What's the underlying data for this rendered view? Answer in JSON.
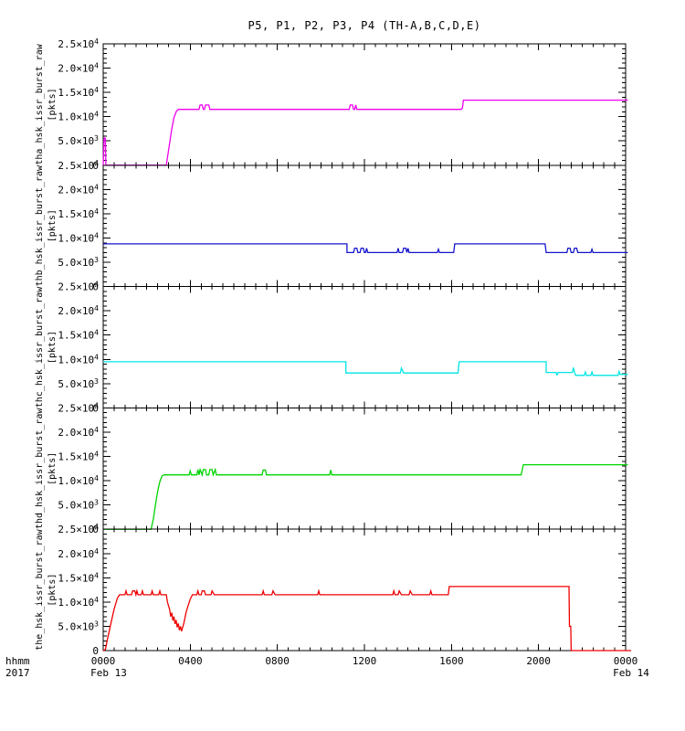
{
  "title": "P5, P1, P2, P3, P4 (TH-A,B,C,D,E)",
  "axis_footer": {
    "line1": "hhmm",
    "line2": "2017"
  },
  "chart_data": {
    "type": "line",
    "title": "P5, P1, P2, P3, P4 (TH-A,B,C,D,E)",
    "grid": false,
    "legend_position": "none",
    "x": {
      "unit": "hhmm",
      "year": "2017",
      "range_hours": [
        0,
        24
      ],
      "minor_step_hours": 0.5,
      "major_ticks": [
        {
          "h": 0,
          "label": "0000",
          "sub": "Feb 13"
        },
        {
          "h": 4,
          "label": "0400"
        },
        {
          "h": 8,
          "label": "0800"
        },
        {
          "h": 12,
          "label": "1200"
        },
        {
          "h": 16,
          "label": "1600"
        },
        {
          "h": 20,
          "label": "2000"
        },
        {
          "h": 24,
          "label": "0000",
          "sub": "Feb 14"
        }
      ]
    },
    "y": {
      "range": [
        0,
        25000
      ],
      "major_step": 5000,
      "minor_step": 1000,
      "unit": "[pkts]",
      "tick_labels": [
        {
          "v": 25000,
          "label": "2.5×10^4"
        },
        {
          "v": 20000,
          "label": "2.0×10^4"
        },
        {
          "v": 15000,
          "label": "1.5×10^4"
        },
        {
          "v": 10000,
          "label": "1.0×10^4"
        },
        {
          "v": 5000,
          "label": "5.0×10^3"
        },
        {
          "v": 0,
          "label": "0"
        }
      ]
    },
    "panels": [
      {
        "probe": "P5",
        "label": "tha_hsk_issr_burst_raw",
        "unit": "[pkts]",
        "color": "#ee00ee",
        "points": [
          [
            0,
            0
          ],
          [
            0.04,
            5600
          ],
          [
            0.1,
            5600
          ],
          [
            0.12,
            0
          ],
          [
            2.9,
            0
          ],
          [
            2.95,
            1500
          ],
          [
            3.05,
            4500
          ],
          [
            3.15,
            7500
          ],
          [
            3.25,
            9800
          ],
          [
            3.35,
            11000
          ],
          [
            3.45,
            11500
          ],
          [
            4.4,
            11500
          ],
          [
            4.45,
            12400
          ],
          [
            4.55,
            12400
          ],
          [
            4.6,
            11500
          ],
          [
            4.65,
            11500
          ],
          [
            4.7,
            12400
          ],
          [
            4.85,
            12400
          ],
          [
            4.9,
            11500
          ],
          [
            11.3,
            11500
          ],
          [
            11.35,
            12400
          ],
          [
            11.45,
            12400
          ],
          [
            11.5,
            11500
          ],
          [
            11.55,
            11500
          ],
          [
            11.6,
            12400
          ],
          [
            11.65,
            11500
          ],
          [
            16.45,
            11500
          ],
          [
            16.5,
            11800
          ],
          [
            16.55,
            13400
          ],
          [
            24.1,
            13400
          ]
        ]
      },
      {
        "probe": "P1",
        "label": "thb_hsk_issr_burst_raw",
        "unit": "[pkts]",
        "color": "#1515cc",
        "points": [
          [
            0,
            8800
          ],
          [
            11.2,
            8800
          ],
          [
            11.2,
            7000
          ],
          [
            11.5,
            7000
          ],
          [
            11.55,
            7900
          ],
          [
            11.65,
            7900
          ],
          [
            11.7,
            7000
          ],
          [
            11.8,
            7000
          ],
          [
            11.85,
            7900
          ],
          [
            11.95,
            7900
          ],
          [
            12.0,
            7000
          ],
          [
            12.05,
            7000
          ],
          [
            12.1,
            7900
          ],
          [
            12.15,
            7000
          ],
          [
            13.5,
            7000
          ],
          [
            13.55,
            7900
          ],
          [
            13.6,
            7000
          ],
          [
            13.75,
            7000
          ],
          [
            13.8,
            7900
          ],
          [
            13.9,
            7900
          ],
          [
            13.95,
            7000
          ],
          [
            14.0,
            7900
          ],
          [
            14.05,
            7000
          ],
          [
            15.35,
            7000
          ],
          [
            15.4,
            7700
          ],
          [
            15.45,
            7000
          ],
          [
            16.1,
            7000
          ],
          [
            16.15,
            8800
          ],
          [
            20.3,
            8800
          ],
          [
            20.35,
            7000
          ],
          [
            21.3,
            7000
          ],
          [
            21.35,
            7900
          ],
          [
            21.45,
            7900
          ],
          [
            21.5,
            7000
          ],
          [
            21.6,
            7000
          ],
          [
            21.65,
            7900
          ],
          [
            21.75,
            7900
          ],
          [
            21.8,
            7000
          ],
          [
            22.4,
            7000
          ],
          [
            22.45,
            7700
          ],
          [
            22.5,
            7000
          ],
          [
            24.1,
            7000
          ]
        ]
      },
      {
        "probe": "P2",
        "label": "thc_hsk_issr_burst_raw",
        "unit": "[pkts]",
        "color": "#00e5e5",
        "points": [
          [
            0,
            9500
          ],
          [
            11.15,
            9500
          ],
          [
            11.15,
            7200
          ],
          [
            13.65,
            7200
          ],
          [
            13.7,
            8200
          ],
          [
            13.8,
            7200
          ],
          [
            16.3,
            7200
          ],
          [
            16.35,
            9500
          ],
          [
            20.35,
            9500
          ],
          [
            20.35,
            7300
          ],
          [
            20.8,
            7300
          ],
          [
            20.85,
            6800
          ],
          [
            20.9,
            7300
          ],
          [
            21.55,
            7300
          ],
          [
            21.6,
            8300
          ],
          [
            21.65,
            7300
          ],
          [
            21.7,
            6700
          ],
          [
            22.1,
            6700
          ],
          [
            22.15,
            7400
          ],
          [
            22.2,
            6700
          ],
          [
            22.4,
            6700
          ],
          [
            22.45,
            7400
          ],
          [
            22.5,
            6700
          ],
          [
            23.65,
            6700
          ],
          [
            23.7,
            7500
          ],
          [
            23.75,
            6900
          ],
          [
            24.1,
            6900
          ]
        ]
      },
      {
        "probe": "P3",
        "label": "thd_hsk_issr_burst_raw",
        "unit": "[pkts]",
        "color": "#00d400",
        "points": [
          [
            0,
            0
          ],
          [
            2.2,
            0
          ],
          [
            2.3,
            2000
          ],
          [
            2.4,
            5000
          ],
          [
            2.5,
            7800
          ],
          [
            2.6,
            9800
          ],
          [
            2.7,
            11000
          ],
          [
            2.8,
            11200
          ],
          [
            3.95,
            11200
          ],
          [
            4.0,
            12000
          ],
          [
            4.05,
            11200
          ],
          [
            4.3,
            11200
          ],
          [
            4.35,
            12300
          ],
          [
            4.4,
            11200
          ],
          [
            4.45,
            12300
          ],
          [
            4.55,
            11200
          ],
          [
            4.6,
            12300
          ],
          [
            4.7,
            12300
          ],
          [
            4.75,
            11200
          ],
          [
            4.85,
            11200
          ],
          [
            4.9,
            12300
          ],
          [
            5.0,
            12300
          ],
          [
            5.05,
            11200
          ],
          [
            5.15,
            12300
          ],
          [
            5.2,
            11200
          ],
          [
            7.3,
            11200
          ],
          [
            7.35,
            12200
          ],
          [
            7.45,
            12200
          ],
          [
            7.5,
            11200
          ],
          [
            10.4,
            11200
          ],
          [
            10.45,
            12200
          ],
          [
            10.5,
            11200
          ],
          [
            19.2,
            11200
          ],
          [
            19.3,
            13300
          ],
          [
            24.1,
            13300
          ]
        ]
      },
      {
        "probe": "P4",
        "label": "the_hsk_issr_burst_raw",
        "unit": "[pkts]",
        "color": "#ee0000",
        "points": [
          [
            0,
            0
          ],
          [
            0.1,
            200
          ],
          [
            0.2,
            2500
          ],
          [
            0.35,
            5500
          ],
          [
            0.5,
            8500
          ],
          [
            0.65,
            10800
          ],
          [
            0.75,
            11500
          ],
          [
            1.0,
            11500
          ],
          [
            1.05,
            12300
          ],
          [
            1.1,
            11500
          ],
          [
            1.3,
            11500
          ],
          [
            1.35,
            12300
          ],
          [
            1.45,
            12300
          ],
          [
            1.5,
            11500
          ],
          [
            1.55,
            12300
          ],
          [
            1.6,
            11500
          ],
          [
            1.75,
            11500
          ],
          [
            1.8,
            12300
          ],
          [
            1.85,
            11500
          ],
          [
            2.2,
            11500
          ],
          [
            2.25,
            12300
          ],
          [
            2.3,
            11500
          ],
          [
            2.55,
            11500
          ],
          [
            2.6,
            12300
          ],
          [
            2.65,
            11500
          ],
          [
            2.9,
            11500
          ],
          [
            2.95,
            10000
          ],
          [
            3.05,
            8500
          ],
          [
            3.1,
            7000
          ],
          [
            3.15,
            7800
          ],
          [
            3.2,
            6200
          ],
          [
            3.25,
            7000
          ],
          [
            3.3,
            5500
          ],
          [
            3.35,
            6300
          ],
          [
            3.4,
            4800
          ],
          [
            3.45,
            5600
          ],
          [
            3.5,
            4200
          ],
          [
            3.55,
            5000
          ],
          [
            3.6,
            4000
          ],
          [
            3.65,
            4800
          ],
          [
            3.7,
            5600
          ],
          [
            3.75,
            6600
          ],
          [
            3.8,
            7800
          ],
          [
            3.9,
            9200
          ],
          [
            4.0,
            10600
          ],
          [
            4.1,
            11500
          ],
          [
            4.3,
            11500
          ],
          [
            4.35,
            12300
          ],
          [
            4.4,
            11500
          ],
          [
            4.5,
            11500
          ],
          [
            4.55,
            12300
          ],
          [
            4.65,
            12300
          ],
          [
            4.7,
            11500
          ],
          [
            4.95,
            11500
          ],
          [
            5.0,
            12300
          ],
          [
            5.1,
            11500
          ],
          [
            7.3,
            11500
          ],
          [
            7.35,
            12300
          ],
          [
            7.4,
            11500
          ],
          [
            7.75,
            11500
          ],
          [
            7.8,
            12300
          ],
          [
            7.9,
            11500
          ],
          [
            9.85,
            11500
          ],
          [
            9.9,
            12300
          ],
          [
            9.95,
            11500
          ],
          [
            13.3,
            11500
          ],
          [
            13.35,
            12300
          ],
          [
            13.4,
            11500
          ],
          [
            13.55,
            11500
          ],
          [
            13.6,
            12300
          ],
          [
            13.7,
            11500
          ],
          [
            14.05,
            11500
          ],
          [
            14.1,
            12300
          ],
          [
            14.2,
            11500
          ],
          [
            15.0,
            11500
          ],
          [
            15.05,
            12300
          ],
          [
            15.1,
            11500
          ],
          [
            15.85,
            11500
          ],
          [
            15.9,
            13200
          ],
          [
            21.4,
            13200
          ],
          [
            21.42,
            5000
          ],
          [
            21.48,
            5000
          ],
          [
            21.5,
            0
          ],
          [
            24.25,
            0
          ]
        ]
      }
    ]
  }
}
